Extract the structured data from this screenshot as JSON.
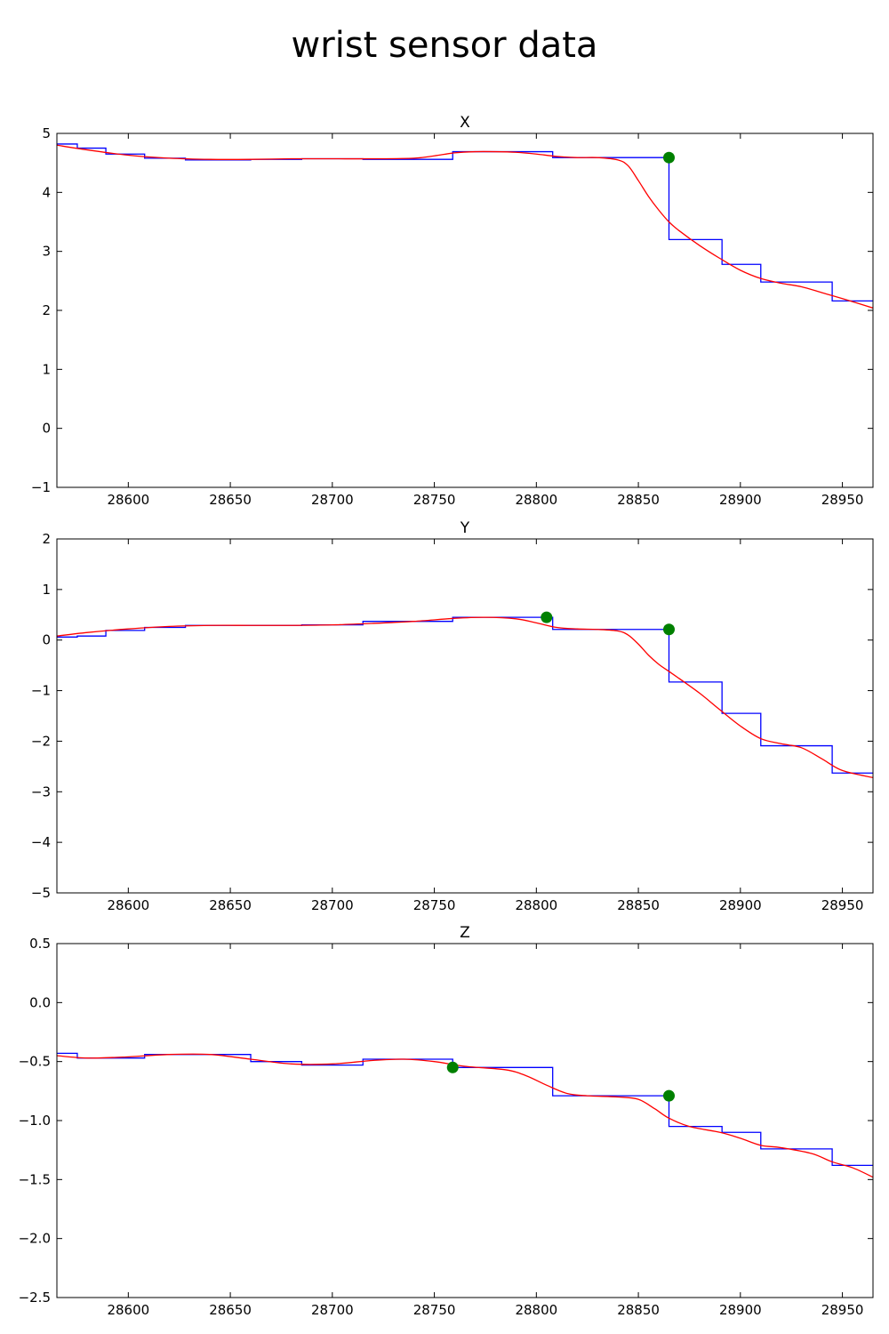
{
  "figure": {
    "title": "wrist sensor data"
  },
  "chart_data": [
    {
      "type": "line",
      "title": "X",
      "xlabel": "",
      "ylabel": "",
      "xlim": [
        28565,
        28965
      ],
      "ylim": [
        -1,
        5
      ],
      "xticks": [
        28600,
        28650,
        28700,
        28750,
        28800,
        28850,
        28900,
        28950
      ],
      "yticks": [
        -1,
        0,
        1,
        2,
        3,
        4,
        5
      ],
      "ytick_labels": [
        "−1",
        "0",
        "1",
        "2",
        "3",
        "4",
        "5"
      ],
      "grid": false,
      "series": [
        {
          "style": "step",
          "color": "#0000ff",
          "x": [
            28565,
            28575,
            28575,
            28589,
            28589,
            28608,
            28608,
            28628,
            28628,
            28660,
            28660,
            28685,
            28685,
            28715,
            28715,
            28759,
            28759,
            28808,
            28808,
            28865,
            28865,
            28891,
            28891,
            28910,
            28910,
            28945,
            28945,
            28965
          ],
          "y": [
            4.82,
            4.82,
            4.75,
            4.75,
            4.65,
            4.65,
            4.58,
            4.58,
            4.55,
            4.55,
            4.56,
            4.56,
            4.57,
            4.57,
            4.56,
            4.56,
            4.69,
            4.69,
            4.59,
            4.59,
            3.2,
            3.2,
            2.78,
            2.78,
            2.48,
            2.48,
            2.16,
            2.16
          ]
        },
        {
          "style": "smooth",
          "color": "#ff0000",
          "x": [
            28565,
            28580,
            28600,
            28620,
            28640,
            28660,
            28680,
            28700,
            28720,
            28740,
            28750,
            28760,
            28770,
            28780,
            28790,
            28800,
            28810,
            28820,
            28830,
            28840,
            28845,
            28850,
            28855,
            28860,
            28865,
            28870,
            28880,
            28890,
            28900,
            28910,
            28920,
            28930,
            28940,
            28950,
            28965
          ],
          "y": [
            4.8,
            4.72,
            4.63,
            4.58,
            4.56,
            4.56,
            4.57,
            4.57,
            4.57,
            4.58,
            4.62,
            4.67,
            4.69,
            4.69,
            4.68,
            4.65,
            4.61,
            4.59,
            4.59,
            4.55,
            4.45,
            4.2,
            3.93,
            3.7,
            3.5,
            3.35,
            3.1,
            2.88,
            2.68,
            2.54,
            2.46,
            2.4,
            2.3,
            2.2,
            2.04
          ]
        }
      ],
      "markers": {
        "color": "#008000",
        "points": [
          {
            "x": 28865,
            "y": 4.59
          }
        ]
      }
    },
    {
      "type": "line",
      "title": "Y",
      "xlabel": "",
      "ylabel": "",
      "xlim": [
        28565,
        28965
      ],
      "ylim": [
        -5,
        2
      ],
      "xticks": [
        28600,
        28650,
        28700,
        28750,
        28800,
        28850,
        28900,
        28950
      ],
      "yticks": [
        -5,
        -4,
        -3,
        -2,
        -1,
        0,
        1,
        2
      ],
      "ytick_labels": [
        "−5",
        "−4",
        "−3",
        "−2",
        "−1",
        "0",
        "1",
        "2"
      ],
      "grid": false,
      "series": [
        {
          "style": "step",
          "color": "#0000ff",
          "x": [
            28565,
            28575,
            28575,
            28589,
            28589,
            28608,
            28608,
            28628,
            28628,
            28660,
            28660,
            28685,
            28685,
            28715,
            28715,
            28759,
            28759,
            28808,
            28808,
            28865,
            28865,
            28891,
            28891,
            28910,
            28910,
            28945,
            28945,
            28965
          ],
          "y": [
            0.06,
            0.06,
            0.08,
            0.08,
            0.19,
            0.19,
            0.25,
            0.25,
            0.29,
            0.29,
            0.29,
            0.29,
            0.3,
            0.3,
            0.37,
            0.37,
            0.45,
            0.45,
            0.21,
            0.21,
            -0.83,
            -0.83,
            -1.45,
            -1.45,
            -2.09,
            -2.09,
            -2.63,
            -2.63
          ]
        },
        {
          "style": "smooth",
          "color": "#ff0000",
          "x": [
            28565,
            28580,
            28600,
            28620,
            28640,
            28660,
            28680,
            28700,
            28720,
            28740,
            28760,
            28775,
            28790,
            28800,
            28810,
            28820,
            28830,
            28840,
            28845,
            28850,
            28855,
            28860,
            28865,
            28870,
            28880,
            28890,
            28900,
            28910,
            28920,
            28930,
            28940,
            28950,
            28965
          ],
          "y": [
            0.08,
            0.15,
            0.22,
            0.27,
            0.29,
            0.29,
            0.29,
            0.3,
            0.33,
            0.37,
            0.43,
            0.45,
            0.42,
            0.34,
            0.25,
            0.22,
            0.21,
            0.18,
            0.1,
            -0.08,
            -0.3,
            -0.48,
            -0.62,
            -0.76,
            -1.05,
            -1.38,
            -1.7,
            -1.95,
            -2.05,
            -2.13,
            -2.35,
            -2.58,
            -2.72
          ]
        }
      ],
      "markers": {
        "color": "#008000",
        "points": [
          {
            "x": 28805,
            "y": 0.45
          },
          {
            "x": 28865,
            "y": 0.21
          }
        ]
      }
    },
    {
      "type": "line",
      "title": "Z",
      "xlabel": "",
      "ylabel": "",
      "xlim": [
        28565,
        28965
      ],
      "ylim": [
        -2.5,
        0.5
      ],
      "xticks": [
        28600,
        28650,
        28700,
        28750,
        28800,
        28850,
        28900,
        28950
      ],
      "yticks": [
        -2.5,
        -2.0,
        -1.5,
        -1.0,
        -0.5,
        0.0,
        0.5
      ],
      "ytick_labels": [
        "−2.5",
        "−2.0",
        "−1.5",
        "−1.0",
        "−0.5",
        "0.0",
        "0.5"
      ],
      "grid": false,
      "series": [
        {
          "style": "step",
          "color": "#0000ff",
          "x": [
            28565,
            28575,
            28575,
            28608,
            28608,
            28660,
            28660,
            28685,
            28685,
            28715,
            28715,
            28759,
            28759,
            28808,
            28808,
            28865,
            28865,
            28891,
            28891,
            28910,
            28910,
            28945,
            28945,
            28965
          ],
          "y": [
            -0.43,
            -0.43,
            -0.47,
            -0.47,
            -0.44,
            -0.44,
            -0.5,
            -0.5,
            -0.53,
            -0.53,
            -0.48,
            -0.48,
            -0.55,
            -0.55,
            -0.79,
            -0.79,
            -1.05,
            -1.05,
            -1.1,
            -1.1,
            -1.24,
            -1.24,
            -1.38,
            -1.38
          ]
        },
        {
          "style": "smooth",
          "color": "#ff0000",
          "x": [
            28565,
            28580,
            28600,
            28620,
            28640,
            28660,
            28680,
            28700,
            28720,
            28735,
            28750,
            28765,
            28785,
            28795,
            28805,
            28815,
            28825,
            28840,
            28850,
            28858,
            28865,
            28875,
            28890,
            28900,
            28910,
            28920,
            28935,
            28945,
            28955,
            28965
          ],
          "y": [
            -0.45,
            -0.47,
            -0.46,
            -0.44,
            -0.44,
            -0.48,
            -0.52,
            -0.52,
            -0.49,
            -0.48,
            -0.5,
            -0.54,
            -0.57,
            -0.62,
            -0.7,
            -0.77,
            -0.79,
            -0.8,
            -0.82,
            -0.9,
            -0.98,
            -1.05,
            -1.1,
            -1.15,
            -1.21,
            -1.23,
            -1.28,
            -1.35,
            -1.4,
            -1.48
          ]
        }
      ],
      "markers": {
        "color": "#008000",
        "points": [
          {
            "x": 28759,
            "y": -0.55
          },
          {
            "x": 28865,
            "y": -0.79
          }
        ]
      }
    }
  ]
}
